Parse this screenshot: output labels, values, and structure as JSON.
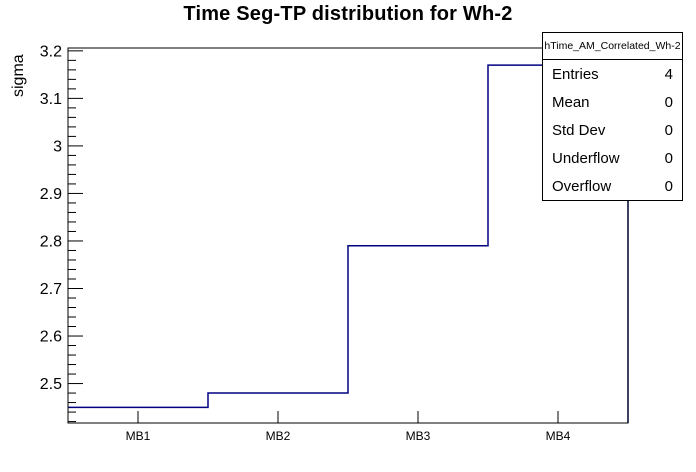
{
  "title": "Time Seg-TP distribution for Wh-2",
  "stats_box": {
    "header": "hTime_AM_Correlated_Wh-2",
    "rows": [
      {
        "label": "Entries",
        "value": "4"
      },
      {
        "label": "Mean",
        "value": "0"
      },
      {
        "label": "Std Dev",
        "value": "0"
      },
      {
        "label": "Underflow",
        "value": "0"
      },
      {
        "label": "Overflow",
        "value": "0"
      }
    ]
  },
  "chart_data": {
    "type": "bar",
    "style": "step-outline-histogram",
    "title": "Time Seg-TP distribution for Wh-2",
    "xlabel": "",
    "ylabel": "sigma",
    "categories": [
      "MB1",
      "MB2",
      "MB3",
      "MB4"
    ],
    "values": [
      2.45,
      2.48,
      2.79,
      3.17
    ],
    "ylim": [
      2.417,
      3.206
    ],
    "y_major_ticks": [
      2.5,
      2.6,
      2.7,
      2.8,
      2.9,
      3.0,
      3.1,
      3.2
    ],
    "y_tick_labels": [
      "2.5",
      "2.6",
      "2.7",
      "2.8",
      "2.9",
      "3",
      "3.1",
      "3.2"
    ],
    "y_minor_step": 0.02,
    "grid": "off",
    "legend": "none",
    "line_color": "#000080",
    "axis_color": "#000000",
    "background_color": "#ffffff"
  }
}
